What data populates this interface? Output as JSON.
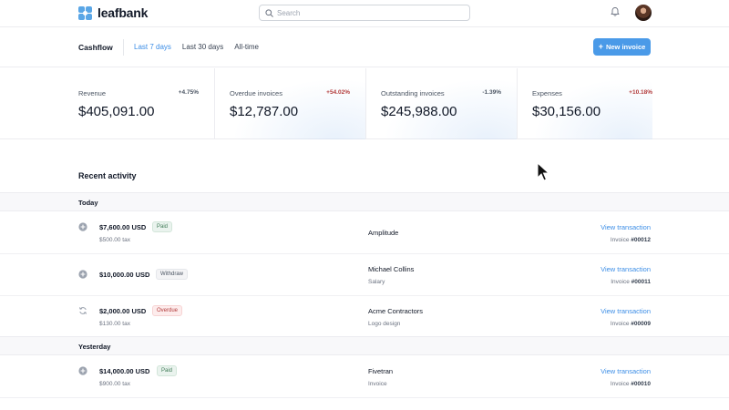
{
  "app": {
    "name": "leafbank"
  },
  "search": {
    "placeholder": "Search"
  },
  "subheader": {
    "title": "Cashflow",
    "tabs": [
      {
        "label": "Last 7 days",
        "active": true
      },
      {
        "label": "Last 30 days",
        "active": false
      },
      {
        "label": "All-time",
        "active": false
      }
    ],
    "new_invoice_label": "New invoice"
  },
  "stats": [
    {
      "label": "Revenue",
      "delta": "+4.75%",
      "delta_color": "#4b5563",
      "value": "$405,091.00"
    },
    {
      "label": "Overdue invoices",
      "delta": "+54.02%",
      "delta_color": "#b23b3b",
      "value": "$12,787.00"
    },
    {
      "label": "Outstanding invoices",
      "delta": "-1.39%",
      "delta_color": "#4b5563",
      "value": "$245,988.00"
    },
    {
      "label": "Expenses",
      "delta": "+10.18%",
      "delta_color": "#b23b3b",
      "value": "$30,156.00"
    }
  ],
  "activity": {
    "title": "Recent activity",
    "groups": [
      {
        "label": "Today"
      },
      {
        "label": "Yesterday"
      }
    ],
    "rows": [
      {
        "icon": "plus-circle-icon",
        "amount": "$7,600.00 USD",
        "status": "Paid",
        "sub": "$500.00 tax",
        "client": "Amplitude",
        "client_sub": "",
        "link": "View transaction",
        "invoice_prefix": "Invoice",
        "invoice_number": "#00012"
      },
      {
        "icon": "plus-circle-icon",
        "amount": "$10,000.00 USD",
        "status": "Withdraw",
        "sub": "",
        "client": "Michael Collins",
        "client_sub": "Salary",
        "link": "View transaction",
        "invoice_prefix": "Invoice",
        "invoice_number": "#00011"
      },
      {
        "icon": "refresh-icon",
        "amount": "$2,000.00 USD",
        "status": "Overdue",
        "sub": "$130.00 tax",
        "client": "Acme Contractors",
        "client_sub": "Logo design",
        "link": "View transaction",
        "invoice_prefix": "Invoice",
        "invoice_number": "#00009"
      },
      {
        "icon": "plus-circle-icon",
        "amount": "$14,000.00 USD",
        "status": "Paid",
        "sub": "$900.00 tax",
        "client": "Fivetran",
        "client_sub": "Invoice",
        "link": "View transaction",
        "invoice_prefix": "Invoice",
        "invoice_number": "#00010"
      }
    ]
  },
  "colors": {
    "accent": "#4a9ae8",
    "paid": "#3f7a56",
    "overdue": "#b23b3b"
  }
}
